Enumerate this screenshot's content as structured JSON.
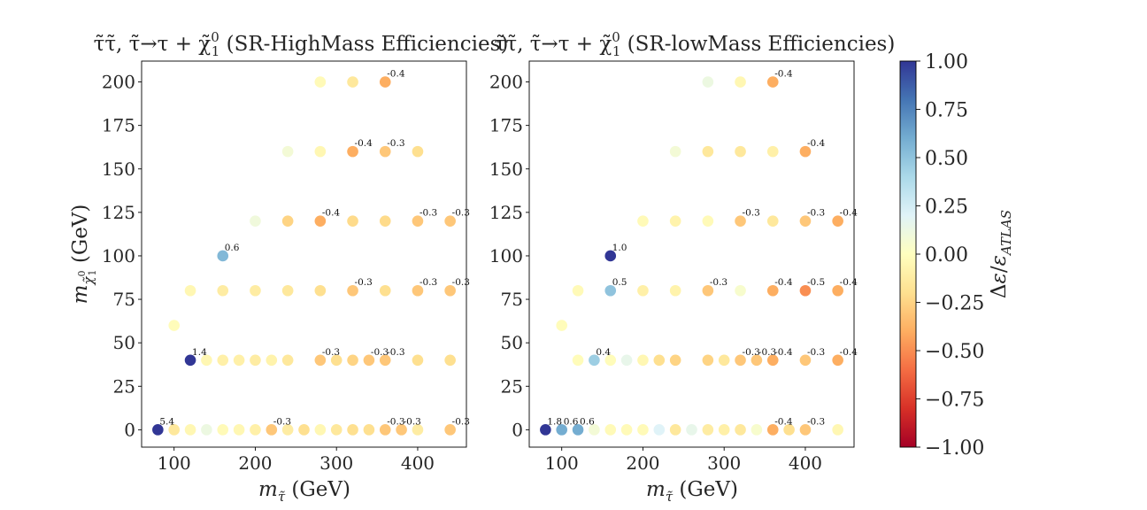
{
  "colorbar": {
    "label": "Δε/ε_ATLAS",
    "min": -1.0,
    "max": 1.0,
    "ticks": [
      "1.00",
      "0.75",
      "0.50",
      "0.25",
      "0.00",
      "−0.25",
      "−0.50",
      "−0.75",
      "−1.00"
    ],
    "colormap": "RdYlBu"
  },
  "chart_data": [
    {
      "type": "scatter",
      "title": "τ̃τ̃, τ̃→τ + χ̃⁰₁ (SR-HighMass Efficiencies)",
      "xlabel": "m_τ̃ (GeV)",
      "ylabel": "m_χ̃⁰₁ (GeV)",
      "xlim": [
        60,
        460
      ],
      "ylim": [
        -10,
        212
      ],
      "xticks": [
        100,
        200,
        300,
        400
      ],
      "yticks": [
        0,
        25,
        50,
        75,
        100,
        125,
        150,
        175,
        200
      ],
      "points": [
        {
          "x": 80,
          "y": 0,
          "v": 1.0,
          "label": "5.4"
        },
        {
          "x": 100,
          "y": 0,
          "v": -0.15,
          "label": ""
        },
        {
          "x": 120,
          "y": 0,
          "v": -0.05,
          "label": ""
        },
        {
          "x": 140,
          "y": 0,
          "v": 0.12,
          "label": ""
        },
        {
          "x": 160,
          "y": 0,
          "v": -0.03,
          "label": ""
        },
        {
          "x": 180,
          "y": 0,
          "v": -0.05,
          "label": ""
        },
        {
          "x": 200,
          "y": 0,
          "v": -0.1,
          "label": ""
        },
        {
          "x": 220,
          "y": 0,
          "v": -0.3,
          "label": "-0.3"
        },
        {
          "x": 240,
          "y": 0,
          "v": -0.12,
          "label": ""
        },
        {
          "x": 260,
          "y": 0,
          "v": -0.2,
          "label": ""
        },
        {
          "x": 280,
          "y": 0,
          "v": -0.05,
          "label": ""
        },
        {
          "x": 300,
          "y": 0,
          "v": -0.15,
          "label": ""
        },
        {
          "x": 320,
          "y": 0,
          "v": -0.2,
          "label": ""
        },
        {
          "x": 340,
          "y": 0,
          "v": -0.2,
          "label": ""
        },
        {
          "x": 360,
          "y": 0,
          "v": -0.3,
          "label": "-0.3"
        },
        {
          "x": 380,
          "y": 0,
          "v": -0.3,
          "label": "-0.3"
        },
        {
          "x": 400,
          "y": 0,
          "v": -0.12,
          "label": ""
        },
        {
          "x": 440,
          "y": 0,
          "v": -0.3,
          "label": "-0.3"
        },
        {
          "x": 120,
          "y": 40,
          "v": 1.0,
          "label": "1.4"
        },
        {
          "x": 140,
          "y": 40,
          "v": -0.05,
          "label": ""
        },
        {
          "x": 160,
          "y": 40,
          "v": -0.1,
          "label": ""
        },
        {
          "x": 180,
          "y": 40,
          "v": -0.1,
          "label": ""
        },
        {
          "x": 200,
          "y": 40,
          "v": -0.12,
          "label": ""
        },
        {
          "x": 220,
          "y": 40,
          "v": -0.08,
          "label": ""
        },
        {
          "x": 240,
          "y": 40,
          "v": -0.15,
          "label": ""
        },
        {
          "x": 280,
          "y": 40,
          "v": -0.3,
          "label": "-0.3"
        },
        {
          "x": 300,
          "y": 40,
          "v": -0.2,
          "label": ""
        },
        {
          "x": 320,
          "y": 40,
          "v": -0.25,
          "label": ""
        },
        {
          "x": 340,
          "y": 40,
          "v": -0.3,
          "label": "-0.3"
        },
        {
          "x": 360,
          "y": 40,
          "v": -0.3,
          "label": "-0.3"
        },
        {
          "x": 400,
          "y": 40,
          "v": -0.2,
          "label": ""
        },
        {
          "x": 440,
          "y": 40,
          "v": -0.2,
          "label": ""
        },
        {
          "x": 100,
          "y": 60,
          "v": -0.02,
          "label": ""
        },
        {
          "x": 120,
          "y": 80,
          "v": -0.05,
          "label": ""
        },
        {
          "x": 160,
          "y": 80,
          "v": -0.12,
          "label": ""
        },
        {
          "x": 200,
          "y": 80,
          "v": -0.12,
          "label": ""
        },
        {
          "x": 240,
          "y": 80,
          "v": -0.15,
          "label": ""
        },
        {
          "x": 280,
          "y": 80,
          "v": -0.2,
          "label": ""
        },
        {
          "x": 320,
          "y": 80,
          "v": -0.3,
          "label": "-0.3"
        },
        {
          "x": 360,
          "y": 80,
          "v": -0.2,
          "label": ""
        },
        {
          "x": 400,
          "y": 80,
          "v": -0.3,
          "label": "-0.3"
        },
        {
          "x": 440,
          "y": 80,
          "v": -0.3,
          "label": "-0.3"
        },
        {
          "x": 160,
          "y": 100,
          "v": 0.55,
          "label": "0.6"
        },
        {
          "x": 200,
          "y": 120,
          "v": 0.1,
          "label": ""
        },
        {
          "x": 240,
          "y": 120,
          "v": -0.25,
          "label": ""
        },
        {
          "x": 280,
          "y": 120,
          "v": -0.4,
          "label": "-0.4"
        },
        {
          "x": 320,
          "y": 120,
          "v": -0.22,
          "label": ""
        },
        {
          "x": 360,
          "y": 120,
          "v": -0.22,
          "label": ""
        },
        {
          "x": 400,
          "y": 120,
          "v": -0.3,
          "label": "-0.3"
        },
        {
          "x": 440,
          "y": 120,
          "v": -0.3,
          "label": "-0.3"
        },
        {
          "x": 240,
          "y": 160,
          "v": 0.08,
          "label": ""
        },
        {
          "x": 280,
          "y": 160,
          "v": -0.05,
          "label": ""
        },
        {
          "x": 320,
          "y": 160,
          "v": -0.4,
          "label": "-0.4"
        },
        {
          "x": 360,
          "y": 160,
          "v": -0.3,
          "label": "-0.3"
        },
        {
          "x": 400,
          "y": 160,
          "v": -0.2,
          "label": ""
        },
        {
          "x": 280,
          "y": 200,
          "v": -0.03,
          "label": ""
        },
        {
          "x": 320,
          "y": 200,
          "v": -0.15,
          "label": ""
        },
        {
          "x": 360,
          "y": 200,
          "v": -0.4,
          "label": "-0.4"
        }
      ]
    },
    {
      "type": "scatter",
      "title": "τ̃τ̃, τ̃→τ + χ̃⁰₁ (SR-lowMass Efficiencies)",
      "xlabel": "m_τ̃ (GeV)",
      "ylabel": "",
      "xlim": [
        60,
        460
      ],
      "ylim": [
        -10,
        212
      ],
      "xticks": [
        100,
        200,
        300,
        400
      ],
      "yticks": [
        0,
        25,
        50,
        75,
        100,
        125,
        150,
        175,
        200
      ],
      "points": [
        {
          "x": 80,
          "y": 0,
          "v": 1.0,
          "label": "1.8"
        },
        {
          "x": 100,
          "y": 0,
          "v": 0.6,
          "label": "0.6"
        },
        {
          "x": 120,
          "y": 0,
          "v": 0.6,
          "label": "0.6"
        },
        {
          "x": 140,
          "y": 0,
          "v": 0.08,
          "label": ""
        },
        {
          "x": 160,
          "y": 0,
          "v": -0.03,
          "label": ""
        },
        {
          "x": 180,
          "y": 0,
          "v": -0.03,
          "label": ""
        },
        {
          "x": 200,
          "y": 0,
          "v": -0.03,
          "label": ""
        },
        {
          "x": 220,
          "y": 0,
          "v": 0.2,
          "label": ""
        },
        {
          "x": 240,
          "y": 0,
          "v": -0.15,
          "label": ""
        },
        {
          "x": 260,
          "y": 0,
          "v": 0.15,
          "label": ""
        },
        {
          "x": 280,
          "y": 0,
          "v": -0.12,
          "label": ""
        },
        {
          "x": 300,
          "y": 0,
          "v": -0.1,
          "label": ""
        },
        {
          "x": 320,
          "y": 0,
          "v": -0.15,
          "label": ""
        },
        {
          "x": 340,
          "y": 0,
          "v": 0.05,
          "label": ""
        },
        {
          "x": 360,
          "y": 0,
          "v": -0.4,
          "label": "-0.4"
        },
        {
          "x": 380,
          "y": 0,
          "v": -0.2,
          "label": ""
        },
        {
          "x": 400,
          "y": 0,
          "v": -0.3,
          "label": "-0.3"
        },
        {
          "x": 440,
          "y": 0,
          "v": -0.05,
          "label": ""
        },
        {
          "x": 120,
          "y": 40,
          "v": -0.02,
          "label": ""
        },
        {
          "x": 140,
          "y": 40,
          "v": 0.45,
          "label": "0.4"
        },
        {
          "x": 160,
          "y": 40,
          "v": -0.02,
          "label": ""
        },
        {
          "x": 180,
          "y": 40,
          "v": 0.15,
          "label": ""
        },
        {
          "x": 200,
          "y": 40,
          "v": -0.05,
          "label": ""
        },
        {
          "x": 220,
          "y": 40,
          "v": -0.2,
          "label": ""
        },
        {
          "x": 240,
          "y": 40,
          "v": -0.25,
          "label": ""
        },
        {
          "x": 280,
          "y": 40,
          "v": -0.25,
          "label": ""
        },
        {
          "x": 300,
          "y": 40,
          "v": -0.15,
          "label": ""
        },
        {
          "x": 320,
          "y": 40,
          "v": -0.3,
          "label": "-0.3"
        },
        {
          "x": 340,
          "y": 40,
          "v": -0.3,
          "label": "-0.3"
        },
        {
          "x": 360,
          "y": 40,
          "v": -0.4,
          "label": "-0.4"
        },
        {
          "x": 400,
          "y": 40,
          "v": -0.3,
          "label": "-0.3"
        },
        {
          "x": 440,
          "y": 40,
          "v": -0.4,
          "label": "-0.4"
        },
        {
          "x": 100,
          "y": 60,
          "v": -0.02,
          "label": ""
        },
        {
          "x": 120,
          "y": 80,
          "v": -0.03,
          "label": ""
        },
        {
          "x": 160,
          "y": 80,
          "v": 0.5,
          "label": "0.5"
        },
        {
          "x": 200,
          "y": 80,
          "v": -0.1,
          "label": ""
        },
        {
          "x": 240,
          "y": 80,
          "v": -0.08,
          "label": ""
        },
        {
          "x": 280,
          "y": 80,
          "v": -0.3,
          "label": "-0.3"
        },
        {
          "x": 320,
          "y": 80,
          "v": 0.05,
          "label": ""
        },
        {
          "x": 360,
          "y": 80,
          "v": -0.4,
          "label": "-0.4"
        },
        {
          "x": 400,
          "y": 80,
          "v": -0.5,
          "label": "-0.5"
        },
        {
          "x": 440,
          "y": 80,
          "v": -0.4,
          "label": "-0.4"
        },
        {
          "x": 160,
          "y": 100,
          "v": 1.0,
          "label": "1.0"
        },
        {
          "x": 200,
          "y": 120,
          "v": -0.03,
          "label": ""
        },
        {
          "x": 240,
          "y": 120,
          "v": -0.08,
          "label": ""
        },
        {
          "x": 280,
          "y": 120,
          "v": -0.03,
          "label": ""
        },
        {
          "x": 320,
          "y": 120,
          "v": -0.3,
          "label": "-0.3"
        },
        {
          "x": 360,
          "y": 120,
          "v": -0.15,
          "label": ""
        },
        {
          "x": 400,
          "y": 120,
          "v": -0.3,
          "label": "-0.3"
        },
        {
          "x": 440,
          "y": 120,
          "v": -0.4,
          "label": "-0.4"
        },
        {
          "x": 240,
          "y": 160,
          "v": 0.08,
          "label": ""
        },
        {
          "x": 280,
          "y": 160,
          "v": -0.15,
          "label": ""
        },
        {
          "x": 320,
          "y": 160,
          "v": -0.15,
          "label": ""
        },
        {
          "x": 360,
          "y": 160,
          "v": -0.1,
          "label": ""
        },
        {
          "x": 400,
          "y": 160,
          "v": -0.4,
          "label": "-0.4"
        },
        {
          "x": 280,
          "y": 200,
          "v": 0.12,
          "label": ""
        },
        {
          "x": 320,
          "y": 200,
          "v": -0.05,
          "label": ""
        },
        {
          "x": 360,
          "y": 200,
          "v": -0.4,
          "label": "-0.4"
        }
      ]
    }
  ]
}
